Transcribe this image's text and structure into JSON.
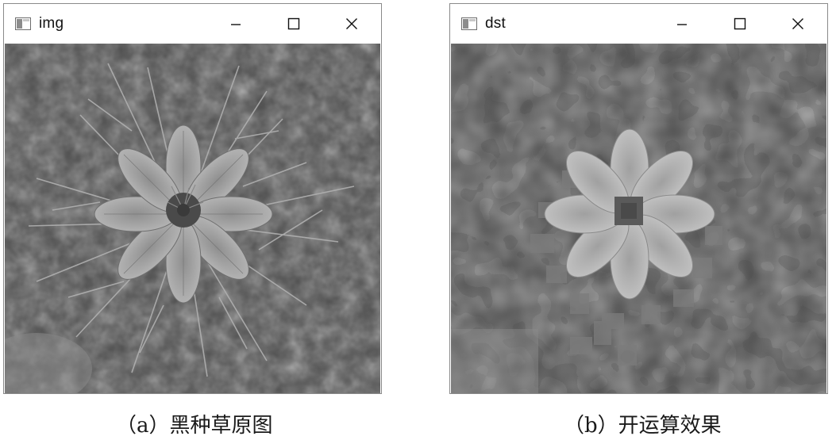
{
  "windows": {
    "img": {
      "title": "img",
      "caption": "（a）黑种草原图",
      "image_subject": "Nigella damascena (love-in-a-mist) flower, grayscale original"
    },
    "dst": {
      "title": "dst",
      "caption": "（b）开运算效果",
      "image_subject": "Same flower after morphological opening, blocky smoothed result"
    }
  },
  "controls": {
    "minimize_icon": "minimize-icon",
    "maximize_icon": "maximize-icon",
    "close_icon": "close-icon"
  },
  "colors": {
    "window_border": "#8a8a8a",
    "titlebar_bg": "#ffffff",
    "title_text": "#111111",
    "caption_text": "#1a1a1a"
  }
}
